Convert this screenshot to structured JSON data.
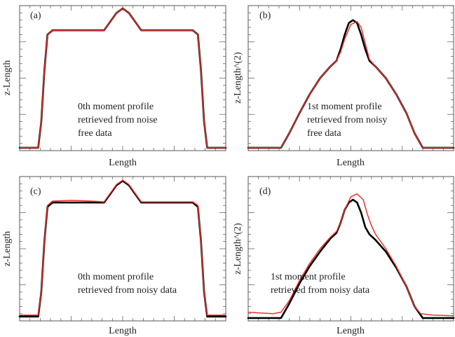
{
  "chart_data": [
    {
      "type": "line",
      "panel_label": "(a)",
      "xlabel": "Length",
      "ylabel": "z-Length",
      "xlim": [
        0,
        1
      ],
      "ylim": [
        0,
        1
      ],
      "annotation": [
        "0th moment profile",
        "retrieved from noise",
        "free data"
      ],
      "series": [
        {
          "color": "#000000",
          "points": [
            [
              0,
              0.02
            ],
            [
              0.09,
              0.02
            ],
            [
              0.105,
              0.2
            ],
            [
              0.12,
              0.55
            ],
            [
              0.135,
              0.8
            ],
            [
              0.16,
              0.83
            ],
            [
              0.41,
              0.83
            ],
            [
              0.44,
              0.89
            ],
            [
              0.47,
              0.95
            ],
            [
              0.5,
              0.98
            ],
            [
              0.53,
              0.95
            ],
            [
              0.56,
              0.89
            ],
            [
              0.59,
              0.83
            ],
            [
              0.84,
              0.83
            ],
            [
              0.865,
              0.8
            ],
            [
              0.88,
              0.55
            ],
            [
              0.895,
              0.2
            ],
            [
              0.91,
              0.02
            ],
            [
              1,
              0.02
            ]
          ]
        },
        {
          "color": "#e8322c",
          "points": [
            [
              0,
              0.02
            ],
            [
              0.09,
              0.02
            ],
            [
              0.105,
              0.2
            ],
            [
              0.12,
              0.55
            ],
            [
              0.135,
              0.8
            ],
            [
              0.16,
              0.83
            ],
            [
              0.41,
              0.83
            ],
            [
              0.44,
              0.89
            ],
            [
              0.47,
              0.95
            ],
            [
              0.5,
              0.98
            ],
            [
              0.53,
              0.95
            ],
            [
              0.56,
              0.89
            ],
            [
              0.59,
              0.83
            ],
            [
              0.84,
              0.83
            ],
            [
              0.865,
              0.8
            ],
            [
              0.88,
              0.55
            ],
            [
              0.895,
              0.2
            ],
            [
              0.91,
              0.02
            ],
            [
              1,
              0.02
            ]
          ]
        }
      ]
    },
    {
      "type": "line",
      "panel_label": "(b)",
      "xlabel": "Length",
      "ylabel": "z-Length^(2)",
      "xlim": [
        0,
        1
      ],
      "ylim": [
        0,
        1
      ],
      "annotation": [
        "1st moment profile",
        "retrieved from noisy",
        "free data"
      ],
      "series": [
        {
          "color": "#000000",
          "points": [
            [
              0,
              0.02
            ],
            [
              0.16,
              0.02
            ],
            [
              0.2,
              0.12
            ],
            [
              0.25,
              0.26
            ],
            [
              0.3,
              0.39
            ],
            [
              0.35,
              0.5
            ],
            [
              0.4,
              0.58
            ],
            [
              0.43,
              0.62
            ],
            [
              0.45,
              0.7
            ],
            [
              0.47,
              0.8
            ],
            [
              0.49,
              0.88
            ],
            [
              0.51,
              0.9
            ],
            [
              0.53,
              0.88
            ],
            [
              0.55,
              0.8
            ],
            [
              0.57,
              0.7
            ],
            [
              0.59,
              0.62
            ],
            [
              0.62,
              0.58
            ],
            [
              0.67,
              0.5
            ],
            [
              0.72,
              0.39
            ],
            [
              0.77,
              0.26
            ],
            [
              0.81,
              0.12
            ],
            [
              0.85,
              0.02
            ],
            [
              1,
              0.02
            ]
          ]
        },
        {
          "color": "#e8322c",
          "points": [
            [
              0,
              0.02
            ],
            [
              0.16,
              0.02
            ],
            [
              0.2,
              0.12
            ],
            [
              0.25,
              0.26
            ],
            [
              0.3,
              0.39
            ],
            [
              0.35,
              0.5
            ],
            [
              0.4,
              0.58
            ],
            [
              0.43,
              0.62
            ],
            [
              0.45,
              0.68
            ],
            [
              0.47,
              0.77
            ],
            [
              0.5,
              0.87
            ],
            [
              0.53,
              0.89
            ],
            [
              0.55,
              0.85
            ],
            [
              0.57,
              0.74
            ],
            [
              0.59,
              0.63
            ],
            [
              0.62,
              0.58
            ],
            [
              0.67,
              0.5
            ],
            [
              0.72,
              0.39
            ],
            [
              0.77,
              0.26
            ],
            [
              0.81,
              0.12
            ],
            [
              0.85,
              0.02
            ],
            [
              1,
              0.02
            ]
          ]
        }
      ]
    },
    {
      "type": "line",
      "panel_label": "(c)",
      "xlabel": "Length",
      "ylabel": "z-Length",
      "xlim": [
        0,
        1
      ],
      "ylim": [
        0,
        1
      ],
      "annotation": [
        "0th moment profile",
        "retrieved from noisy data"
      ],
      "series": [
        {
          "color": "#000000",
          "points": [
            [
              0,
              0.03
            ],
            [
              0.09,
              0.03
            ],
            [
              0.105,
              0.2
            ],
            [
              0.12,
              0.55
            ],
            [
              0.135,
              0.79
            ],
            [
              0.16,
              0.82
            ],
            [
              0.41,
              0.82
            ],
            [
              0.44,
              0.88
            ],
            [
              0.47,
              0.94
            ],
            [
              0.5,
              0.97
            ],
            [
              0.53,
              0.94
            ],
            [
              0.56,
              0.88
            ],
            [
              0.59,
              0.82
            ],
            [
              0.84,
              0.82
            ],
            [
              0.865,
              0.79
            ],
            [
              0.88,
              0.55
            ],
            [
              0.895,
              0.2
            ],
            [
              0.91,
              0.03
            ],
            [
              1,
              0.03
            ]
          ]
        },
        {
          "color": "#e8322c",
          "points": [
            [
              0,
              0.04
            ],
            [
              0.09,
              0.04
            ],
            [
              0.105,
              0.2
            ],
            [
              0.12,
              0.55
            ],
            [
              0.135,
              0.8
            ],
            [
              0.16,
              0.83
            ],
            [
              0.25,
              0.835
            ],
            [
              0.35,
              0.83
            ],
            [
              0.41,
              0.825
            ],
            [
              0.44,
              0.885
            ],
            [
              0.47,
              0.945
            ],
            [
              0.5,
              0.975
            ],
            [
              0.53,
              0.945
            ],
            [
              0.56,
              0.885
            ],
            [
              0.59,
              0.825
            ],
            [
              0.7,
              0.825
            ],
            [
              0.84,
              0.825
            ],
            [
              0.865,
              0.8
            ],
            [
              0.88,
              0.55
            ],
            [
              0.895,
              0.2
            ],
            [
              0.91,
              0.04
            ],
            [
              1,
              0.04
            ]
          ]
        }
      ]
    },
    {
      "type": "line",
      "panel_label": "(d)",
      "xlabel": "Length",
      "ylabel": "z-Length^(2)",
      "xlim": [
        0,
        1
      ],
      "ylim": [
        0,
        1
      ],
      "annotation": [
        "1st moment profile",
        "retrieved from noisy data"
      ],
      "series": [
        {
          "color": "#000000",
          "points": [
            [
              0,
              0.02
            ],
            [
              0.16,
              0.02
            ],
            [
              0.2,
              0.12
            ],
            [
              0.25,
              0.26
            ],
            [
              0.3,
              0.38
            ],
            [
              0.35,
              0.48
            ],
            [
              0.4,
              0.57
            ],
            [
              0.43,
              0.61
            ],
            [
              0.45,
              0.68
            ],
            [
              0.47,
              0.77
            ],
            [
              0.49,
              0.82
            ],
            [
              0.51,
              0.84
            ],
            [
              0.53,
              0.82
            ],
            [
              0.55,
              0.75
            ],
            [
              0.57,
              0.65
            ],
            [
              0.59,
              0.6
            ],
            [
              0.62,
              0.56
            ],
            [
              0.67,
              0.48
            ],
            [
              0.72,
              0.37
            ],
            [
              0.77,
              0.24
            ],
            [
              0.81,
              0.1
            ],
            [
              0.85,
              0.02
            ],
            [
              1,
              0.02
            ]
          ]
        },
        {
          "color": "#e8322c",
          "points": [
            [
              0,
              0.06
            ],
            [
              0.06,
              0.055
            ],
            [
              0.12,
              0.05
            ],
            [
              0.16,
              0.06
            ],
            [
              0.2,
              0.14
            ],
            [
              0.25,
              0.28
            ],
            [
              0.3,
              0.4
            ],
            [
              0.35,
              0.5
            ],
            [
              0.4,
              0.58
            ],
            [
              0.43,
              0.62
            ],
            [
              0.45,
              0.68
            ],
            [
              0.47,
              0.77
            ],
            [
              0.5,
              0.86
            ],
            [
              0.53,
              0.88
            ],
            [
              0.56,
              0.84
            ],
            [
              0.58,
              0.74
            ],
            [
              0.6,
              0.66
            ],
            [
              0.62,
              0.6
            ],
            [
              0.67,
              0.5
            ],
            [
              0.72,
              0.38
            ],
            [
              0.77,
              0.24
            ],
            [
              0.81,
              0.1
            ],
            [
              0.84,
              0.05
            ],
            [
              0.9,
              0.04
            ],
            [
              1,
              0.035
            ]
          ]
        }
      ]
    }
  ]
}
